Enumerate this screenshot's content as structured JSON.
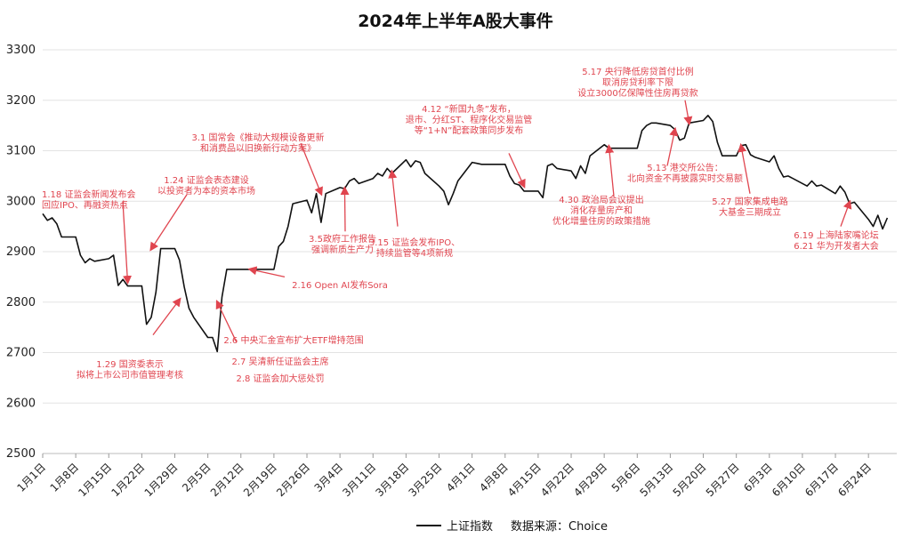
{
  "chart_data": {
    "type": "line",
    "title": "2024年上半年A股大事件",
    "xlabel": "",
    "ylabel": "",
    "ylim": [
      2500,
      3300
    ],
    "yticks": [
      2500,
      2600,
      2700,
      2800,
      2900,
      3000,
      3100,
      3200,
      3300
    ],
    "grid": "horizontal",
    "legend_position": "bottom",
    "x_ticks": [
      "1月1日",
      "1月8日",
      "1月15日",
      "1月22日",
      "1月29日",
      "2月5日",
      "2月12日",
      "2月19日",
      "2月26日",
      "3月4日",
      "3月11日",
      "3月18日",
      "3月25日",
      "4月1日",
      "4月8日",
      "4月15日",
      "4月22日",
      "4月29日",
      "5月6日",
      "5月13日",
      "5月20日",
      "5月27日",
      "6月3日",
      "6月10日",
      "6月17日",
      "6月24日"
    ],
    "x_start": "2024-01-01",
    "x_end": "2024-06-30",
    "series": [
      {
        "name": "上证指数",
        "color": "#111111",
        "points": [
          [
            "01-01",
            2975
          ],
          [
            "01-02",
            2962
          ],
          [
            "01-03",
            2967
          ],
          [
            "01-04",
            2955
          ],
          [
            "01-05",
            2929
          ],
          [
            "01-08",
            2929
          ],
          [
            "01-09",
            2893
          ],
          [
            "01-10",
            2878
          ],
          [
            "01-11",
            2886
          ],
          [
            "01-12",
            2881
          ],
          [
            "01-15",
            2886
          ],
          [
            "01-16",
            2893
          ],
          [
            "01-17",
            2833
          ],
          [
            "01-18",
            2845
          ],
          [
            "01-19",
            2832
          ],
          [
            "01-22",
            2832
          ],
          [
            "01-23",
            2756
          ],
          [
            "01-24",
            2770
          ],
          [
            "01-25",
            2820
          ],
          [
            "01-26",
            2906
          ],
          [
            "01-29",
            2906
          ],
          [
            "01-30",
            2883
          ],
          [
            "01-31",
            2830
          ],
          [
            "02-01",
            2788
          ],
          [
            "02-02",
            2770
          ],
          [
            "02-05",
            2730
          ],
          [
            "02-06",
            2730
          ],
          [
            "02-07",
            2702
          ],
          [
            "02-08",
            2810
          ],
          [
            "02-09",
            2865
          ],
          [
            "02-19",
            2865
          ],
          [
            "02-20",
            2910
          ],
          [
            "02-21",
            2920
          ],
          [
            "02-22",
            2950
          ],
          [
            "02-23",
            2995
          ],
          [
            "02-26",
            3002
          ],
          [
            "02-27",
            2977
          ],
          [
            "02-28",
            3015
          ],
          [
            "02-29",
            2958
          ],
          [
            "03-01",
            3015
          ],
          [
            "03-04",
            3027
          ],
          [
            "03-05",
            3025
          ],
          [
            "03-06",
            3040
          ],
          [
            "03-07",
            3045
          ],
          [
            "03-08",
            3035
          ],
          [
            "03-11",
            3045
          ],
          [
            "03-12",
            3055
          ],
          [
            "03-13",
            3050
          ],
          [
            "03-14",
            3065
          ],
          [
            "03-15",
            3055
          ],
          [
            "03-18",
            3082
          ],
          [
            "03-19",
            3068
          ],
          [
            "03-20",
            3080
          ],
          [
            "03-21",
            3077
          ],
          [
            "03-22",
            3055
          ],
          [
            "03-25",
            3030
          ],
          [
            "03-26",
            3020
          ],
          [
            "03-27",
            2993
          ],
          [
            "03-28",
            3015
          ],
          [
            "03-29",
            3040
          ],
          [
            "04-01",
            3077
          ],
          [
            "04-02",
            3075
          ],
          [
            "04-03",
            3073
          ],
          [
            "04-08",
            3073
          ],
          [
            "04-09",
            3050
          ],
          [
            "04-10",
            3035
          ],
          [
            "04-11",
            3032
          ],
          [
            "04-12",
            3020
          ],
          [
            "04-15",
            3020
          ],
          [
            "04-16",
            3007
          ],
          [
            "04-17",
            3070
          ],
          [
            "04-18",
            3074
          ],
          [
            "04-19",
            3065
          ],
          [
            "04-22",
            3060
          ],
          [
            "04-23",
            3045
          ],
          [
            "04-24",
            3070
          ],
          [
            "04-25",
            3055
          ],
          [
            "04-26",
            3090
          ],
          [
            "04-29",
            3112
          ],
          [
            "04-30",
            3105
          ],
          [
            "05-06",
            3105
          ],
          [
            "05-07",
            3140
          ],
          [
            "05-08",
            3150
          ],
          [
            "05-09",
            3155
          ],
          [
            "05-10",
            3155
          ],
          [
            "05-13",
            3150
          ],
          [
            "05-14",
            3142
          ],
          [
            "05-15",
            3121
          ],
          [
            "05-16",
            3125
          ],
          [
            "05-17",
            3155
          ],
          [
            "05-20",
            3160
          ],
          [
            "05-21",
            3170
          ],
          [
            "05-22",
            3158
          ],
          [
            "05-23",
            3116
          ],
          [
            "05-24",
            3090
          ],
          [
            "05-27",
            3090
          ],
          [
            "05-28",
            3110
          ],
          [
            "05-29",
            3112
          ],
          [
            "05-30",
            3092
          ],
          [
            "05-31",
            3087
          ],
          [
            "06-03",
            3078
          ],
          [
            "06-04",
            3090
          ],
          [
            "06-05",
            3065
          ],
          [
            "06-06",
            3048
          ],
          [
            "06-07",
            3050
          ],
          [
            "06-11",
            3030
          ],
          [
            "06-12",
            3040
          ],
          [
            "06-13",
            3030
          ],
          [
            "06-14",
            3032
          ],
          [
            "06-17",
            3015
          ],
          [
            "06-18",
            3030
          ],
          [
            "06-19",
            3018
          ],
          [
            "06-20",
            2995
          ],
          [
            "06-21",
            2998
          ],
          [
            "06-24",
            2964
          ],
          [
            "06-25",
            2950
          ],
          [
            "06-26",
            2972
          ],
          [
            "06-27",
            2945
          ],
          [
            "06-28",
            2967
          ]
        ]
      }
    ],
    "annotations": [
      {
        "lines": [
          "1.18 证监会新闻发布会",
          "回应IPO、再融资热点"
        ],
        "arrow_date": "01-19",
        "arrow_value": 2840,
        "from_value": 3000
      },
      {
        "lines": [
          "1.24 证监会表态建设",
          "以投资者为本的资本市场"
        ],
        "arrow_date": "01-24",
        "arrow_value": 2905,
        "from_value": 3013
      },
      {
        "lines": [
          "3.1 国常会《推动大规模设备更新",
          "和消费品以旧换新行动方案》"
        ],
        "arrow_date": "02-29",
        "arrow_value": 3015,
        "from_value": 3115
      },
      {
        "lines": [
          "1.29 国资委表示",
          "拟将上市公司市值管理考核"
        ],
        "arrow_date": "01-30",
        "arrow_value": 2805,
        "from_value": 2735
      },
      {
        "lines": [
          "2.6 中央汇金宣布扩大ETF增持范围"
        ],
        "arrow_date": "02-07",
        "arrow_value": 2800,
        "from_value": 2720
      },
      {
        "lines": [
          "2.7 吴清新任证监会主席"
        ]
      },
      {
        "lines": [
          "2.8 证监会加大惩处罚"
        ]
      },
      {
        "lines": [
          "2.16 Open AI发布Sora"
        ],
        "arrow_date": "02-14",
        "arrow_value": 2865,
        "from_value": 2850
      },
      {
        "lines": [
          "3.5政府工作报告",
          "强调新质生产力"
        ],
        "arrow_date": "03-05",
        "arrow_value": 3025,
        "from_value": 2940
      },
      {
        "lines": [
          "3.15 证监会发布IPO、",
          "持续监管等4项新规"
        ],
        "arrow_date": "03-15",
        "arrow_value": 3058,
        "from_value": 2950
      },
      {
        "lines": [
          "4.12 “新国九条”发布，",
          "退市、分红ST、程序化交易监管",
          "等“1+N”配套政策同步发布"
        ],
        "arrow_date": "04-12",
        "arrow_value": 3030,
        "from_value": 3095
      },
      {
        "lines": [
          "4.30 政治局会议提出",
          "消化存量房产和",
          "优化增量住房的政策措施"
        ],
        "arrow_date": "04-30",
        "arrow_value": 3108,
        "from_value": 3010
      },
      {
        "lines": [
          "5.17 央行降低房贷首付比例",
          "取消房贷利率下限",
          "设立3000亿保障性住房再贷款"
        ],
        "arrow_date": "05-17",
        "arrow_value": 3155,
        "from_value": 3200
      },
      {
        "lines": [
          "5.13 港交所公告：",
          "北向资金不再披露实时交易额"
        ],
        "arrow_date": "05-14",
        "arrow_value": 3142,
        "from_value": 3070
      },
      {
        "lines": [
          "5.27 国家集成电路",
          "大基金三期成立"
        ],
        "arrow_date": "05-28",
        "arrow_value": 3110,
        "from_value": 3015
      },
      {
        "lines": [
          "6.19 上海陆家嘴论坛",
          "6.21 华为开发者大会"
        ],
        "arrow_date": "06-20",
        "arrow_value": 2998,
        "from_value": 2950
      }
    ]
  },
  "legend": {
    "series_label": "上证指数",
    "source_label": "数据来源：Choice"
  }
}
